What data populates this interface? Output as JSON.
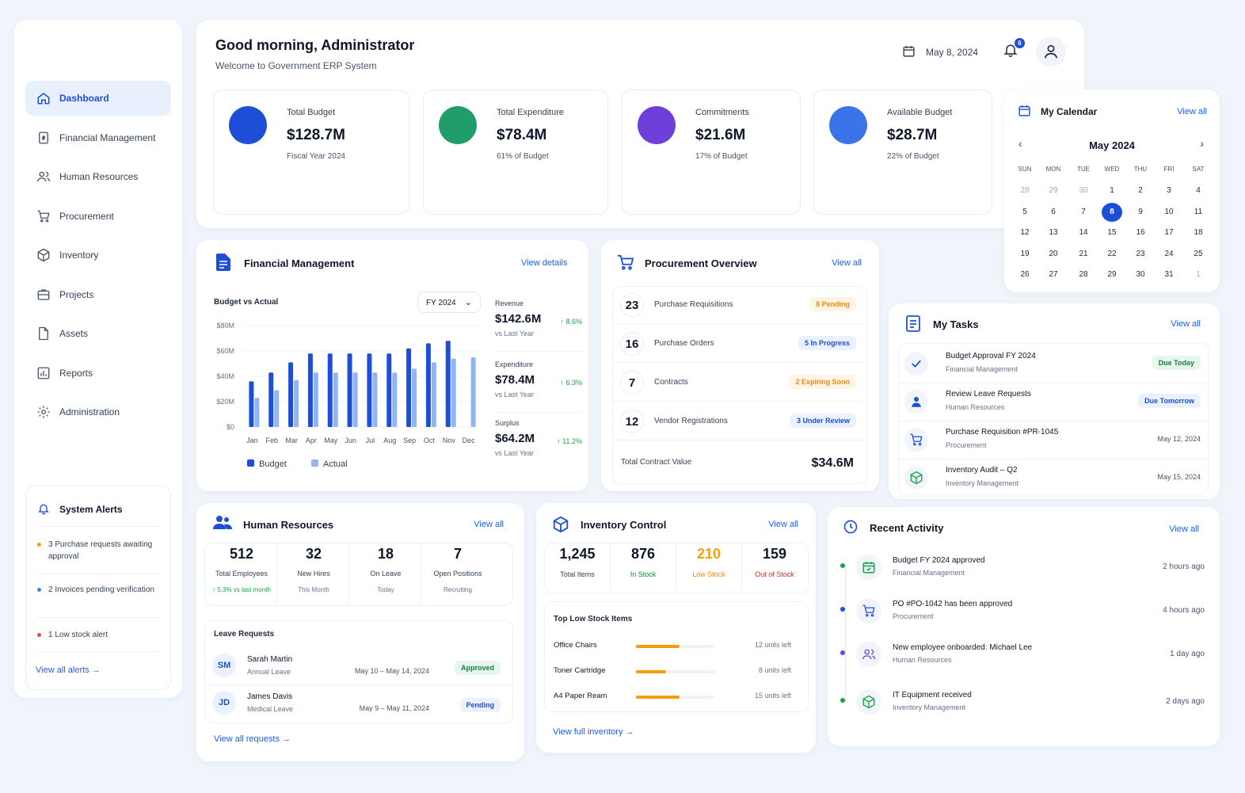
{
  "header": {
    "greeting": "Good morning, Administrator",
    "subtitle": "Welcome to Government ERP System",
    "date": "May 8, 2024",
    "notification_count": "6"
  },
  "sidebar": {
    "items": [
      {
        "label": "Dashboard",
        "icon": "home-icon",
        "active": true
      },
      {
        "label": "Financial Management",
        "icon": "dollar-doc-icon"
      },
      {
        "label": "Human Resources",
        "icon": "users-icon"
      },
      {
        "label": "Procurement",
        "icon": "cart-icon"
      },
      {
        "label": "Inventory",
        "icon": "box-icon"
      },
      {
        "label": "Projects",
        "icon": "briefcase-icon"
      },
      {
        "label": "Assets",
        "icon": "file-icon"
      },
      {
        "label": "Reports",
        "icon": "bar-chart-icon"
      },
      {
        "label": "Administration",
        "icon": "gear-icon"
      }
    ]
  },
  "alerts": {
    "title": "System Alerts",
    "items": [
      {
        "text": "3 Purchase requests awaiting approval",
        "color": "#f59e0b"
      },
      {
        "text": "2 Invoices pending verification",
        "color": "#3b82f6"
      },
      {
        "text": "1 Low stock alert",
        "color": "#ef4444"
      }
    ],
    "view_all": "View all alerts"
  },
  "kpis": [
    {
      "label": "Total Budget",
      "value": "$128.7M",
      "sub": "Fiscal Year 2024",
      "color": "#1d4ed8",
      "line": "#2563eb",
      "glyph": "$"
    },
    {
      "label": "Total Expenditure",
      "value": "$78.4M",
      "sub": "61% of Budget",
      "color": "#1f9d6b",
      "line": "#16a34a",
      "glyph": "wallet"
    },
    {
      "label": "Commitments",
      "value": "$21.6M",
      "sub": "17% of Budget",
      "color": "#6d3fd8",
      "line": "#7c3aed",
      "glyph": "bars"
    },
    {
      "label": "Available Budget",
      "value": "$28.7M",
      "sub": "22% of Budget",
      "color": "#3b74e8",
      "line": "#2563eb",
      "glyph": "doc"
    }
  ],
  "calendar": {
    "title": "My Calendar",
    "view_all": "View all",
    "month": "May 2024",
    "days": [
      "SUN",
      "MON",
      "TUE",
      "WED",
      "THU",
      "FRI",
      "SAT"
    ],
    "weeks": [
      [
        "28",
        "29",
        "30",
        "1",
        "2",
        "3",
        "4"
      ],
      [
        "5",
        "6",
        "7",
        "8",
        "9",
        "10",
        "11"
      ],
      [
        "12",
        "13",
        "14",
        "15",
        "16",
        "17",
        "18"
      ],
      [
        "19",
        "20",
        "21",
        "22",
        "23",
        "24",
        "25"
      ],
      [
        "26",
        "27",
        "28",
        "29",
        "30",
        "31",
        "1"
      ]
    ],
    "selected": "8"
  },
  "finance": {
    "title": "Financial Management",
    "view_details": "View details",
    "chart_title": "Budget vs Actual",
    "fy_select": "FY 2024",
    "legend_budget": "Budget",
    "legend_actual": "Actual",
    "side": [
      {
        "label": "Revenue",
        "value": "$142.6M",
        "pct": "↑ 8.6%",
        "sub": "vs Last Year"
      },
      {
        "label": "Expenditure",
        "value": "$78.4M",
        "pct": "↑ 6.3%",
        "sub": "vs Last Year"
      },
      {
        "label": "Surplus",
        "value": "$64.2M",
        "pct": "↑ 11.2%",
        "sub": "vs Last Year"
      }
    ]
  },
  "chart_data": {
    "type": "bar",
    "title": "Budget vs Actual",
    "categories": [
      "Jan",
      "Feb",
      "Mar",
      "Apr",
      "May",
      "Jun",
      "Jul",
      "Aug",
      "Sep",
      "Oct",
      "Nov",
      "Dec"
    ],
    "series": [
      {
        "name": "Budget",
        "values": [
          36,
          43,
          51,
          58,
          58,
          58,
          58,
          58,
          62,
          66,
          68,
          null
        ],
        "color": "#1d4ed8"
      },
      {
        "name": "Actual",
        "values": [
          23,
          29,
          37,
          43,
          43,
          43,
          43,
          43,
          46,
          51,
          54,
          55
        ],
        "color": "#8fb5f5"
      }
    ],
    "yticks": [
      "$0",
      "$20M",
      "$40M",
      "$60M",
      "$80M"
    ],
    "ylim": [
      0,
      80
    ],
    "grid": true,
    "legend": "bottom"
  },
  "procurement": {
    "title": "Procurement Overview",
    "view_all": "View all",
    "rows": [
      {
        "num": "23",
        "label": "Purchase Requisitions",
        "badge": "8 Pending",
        "color": "#ea8a12",
        "bg": "#fff4e5"
      },
      {
        "num": "16",
        "label": "Purchase Orders",
        "badge": "5 In Progress",
        "color": "#1d4ed8",
        "bg": "#eaf1ff"
      },
      {
        "num": "7",
        "label": "Contracts",
        "badge": "2 Expiring Soon",
        "color": "#ea8a12",
        "bg": "#fff4e5"
      },
      {
        "num": "12",
        "label": "Vendor Registrations",
        "badge": "3 Under Review",
        "color": "#1d4ed8",
        "bg": "#eaf1ff"
      }
    ],
    "total_label": "Total Contract Value",
    "total_value": "$34.6M"
  },
  "tasks": {
    "title": "My Tasks",
    "view_all": "View all",
    "items": [
      {
        "title": "Budget Approval FY 2024",
        "sub": "Financial Management",
        "right": "Due Today",
        "badge": true,
        "color": "#15803d",
        "bg": "#e7f7ee",
        "icon": "check-icon"
      },
      {
        "title": "Review Leave Requests",
        "sub": "Human Resources",
        "right": "Due Tomorrow",
        "badge": true,
        "color": "#1d4ed8",
        "bg": "#eaf1ff",
        "icon": "user-icon"
      },
      {
        "title": "Purchase Requisition #PR-1045",
        "sub": "Procurement",
        "right": "May 12, 2024",
        "badge": false,
        "icon": "cart-icon"
      },
      {
        "title": "Inventory Audit – Q2",
        "sub": "Inventory Management",
        "right": "May 15, 2024",
        "badge": false,
        "icon": "box-icon"
      }
    ]
  },
  "hr": {
    "title": "Human Resources",
    "view_all": "View all",
    "stats": [
      {
        "num": "512",
        "label": "Total Employees",
        "sub": "↑ 5.3% vs last month"
      },
      {
        "num": "32",
        "label": "New Hires",
        "sub": "This Month"
      },
      {
        "num": "18",
        "label": "On Leave",
        "sub": "Today"
      },
      {
        "num": "7",
        "label": "Open Positions",
        "sub": "Recruiting"
      }
    ],
    "leave_title": "Leave Requests",
    "leaves": [
      {
        "initials": "SM",
        "name": "Sarah Martin",
        "type": "Annual Leave",
        "dates": "May 10 – May 14, 2024",
        "status": "Approved",
        "color": "#15803d",
        "bg": "#e7f7ee"
      },
      {
        "initials": "JD",
        "name": "James Davis",
        "type": "Medical Leave",
        "dates": "May 9 – May 11, 2024",
        "status": "Pending",
        "color": "#1d4ed8",
        "bg": "#eaf1ff"
      }
    ],
    "view_requests": "View all requests"
  },
  "inventory": {
    "title": "Inventory Control",
    "view_all": "View all",
    "stats": [
      {
        "num": "1,245",
        "label": "Total Items",
        "color": "#0f172a",
        "lcolor": "#334155"
      },
      {
        "num": "876",
        "label": "In Stock",
        "color": "#0f172a",
        "lcolor": "#15803d"
      },
      {
        "num": "210",
        "label": "Low Stock",
        "color": "#f59e0b",
        "lcolor": "#ea8a12"
      },
      {
        "num": "159",
        "label": "Out of Stock",
        "color": "#0f172a",
        "lcolor": "#dc2626"
      }
    ],
    "low_title": "Top Low Stock Items",
    "low_items": [
      {
        "name": "Office Chairs",
        "units": "12 units left",
        "level": 0.55
      },
      {
        "name": "Toner Cartridge",
        "units": "8 units left",
        "level": 0.38
      },
      {
        "name": "A4 Paper Ream",
        "units": "15 units left",
        "level": 0.55
      }
    ],
    "view_full": "View full inventory"
  },
  "activity": {
    "title": "Recent Activity",
    "view_all": "View all",
    "items": [
      {
        "title": "Budget FY 2024 approved",
        "sub": "Financial Management",
        "time": "2 hours ago",
        "color": "#16a34a",
        "icon": "calendar-check-icon"
      },
      {
        "title": "PO #PO-1042 has been approved",
        "sub": "Procurement",
        "time": "4 hours ago",
        "color": "#1d4ed8",
        "icon": "cart-icon"
      },
      {
        "title": "New employee onboarded: Michael Lee",
        "sub": "Human Resources",
        "time": "1 day ago",
        "color": "#6d3fd8",
        "icon": "users-icon"
      },
      {
        "title": "IT Equipment received",
        "sub": "Inventory Management",
        "time": "2 days ago",
        "color": "#16a34a",
        "icon": "box-icon"
      }
    ]
  }
}
